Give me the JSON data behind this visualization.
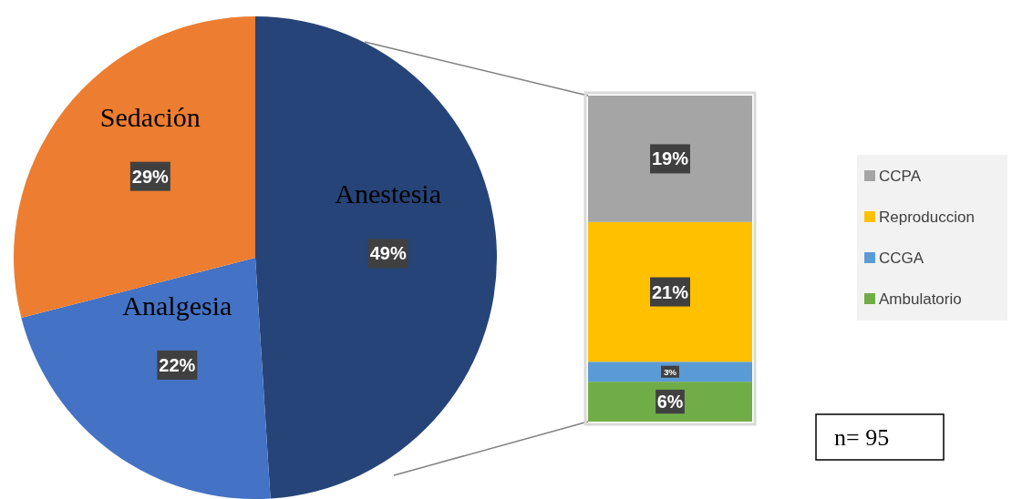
{
  "chart_data": [
    {
      "type": "pie",
      "categories": [
        "Anestesia",
        "Analgesia",
        "Sedación"
      ],
      "values": [
        49,
        22,
        29
      ],
      "colors": [
        "#264478",
        "#4472c4",
        "#ed7d31"
      ],
      "value_labels": [
        "49%",
        "22%",
        "29%"
      ]
    },
    {
      "type": "bar",
      "stacked": true,
      "categories": [
        null
      ],
      "legend": "right",
      "annotations": [
        "n= 95"
      ],
      "series": [
        {
          "name": "Ambulatorio",
          "color": "#70ad47",
          "values": [
            6
          ],
          "value_labels": [
            "6%"
          ]
        },
        {
          "name": "CCGA",
          "color": "#5b9bd5",
          "values": [
            3
          ],
          "value_labels": [
            "3%"
          ]
        },
        {
          "name": "Reproduccion",
          "color": "#ffc000",
          "values": [
            21
          ],
          "value_labels": [
            "21%"
          ]
        },
        {
          "name": "CCPA",
          "color": "#a5a5a5",
          "values": [
            19
          ],
          "value_labels": [
            "19%"
          ]
        }
      ]
    }
  ]
}
